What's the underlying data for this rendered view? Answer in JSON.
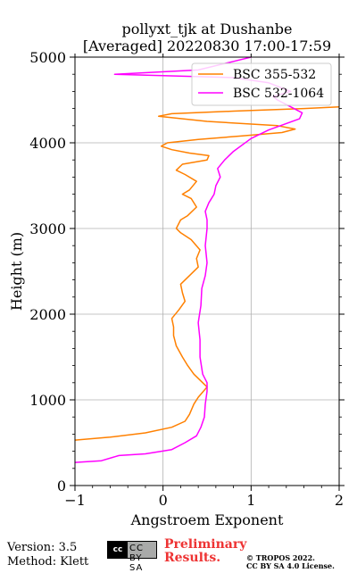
{
  "title": {
    "line1": "pollyxt_tjk at Dushanbe",
    "line2": "[Averaged] 20220830 17:00-17:59"
  },
  "footer": {
    "version": "Version: 3.5",
    "method": "Method: Klett",
    "preliminary_line1": "Preliminary",
    "preliminary_line2": "Results.",
    "copyright_line1": "© TROPOS 2022.",
    "copyright_line2": "CC BY SA 4.0 License.",
    "license_badge": "CC BY SA",
    "license_badge_short": "cc"
  },
  "chart_data": {
    "type": "line",
    "xlabel": "Angstroem Exponent",
    "ylabel": "Height (m)",
    "xlim": [
      -1,
      2
    ],
    "ylim": [
      0,
      5000
    ],
    "xticks": [
      -1,
      0,
      1,
      2
    ],
    "yticks": [
      0,
      1000,
      2000,
      3000,
      4000,
      5000
    ],
    "grid": true,
    "legend_position": "top-right",
    "series": [
      {
        "name": "BSC 355-532",
        "color": "#ff8000",
        "points": [
          [
            -1.0,
            530
          ],
          [
            -0.6,
            565
          ],
          [
            -0.2,
            615
          ],
          [
            0.1,
            680
          ],
          [
            0.25,
            750
          ],
          [
            0.3,
            830
          ],
          [
            0.35,
            950
          ],
          [
            0.4,
            1030
          ],
          [
            0.5,
            1150
          ],
          [
            0.45,
            1200
          ],
          [
            0.35,
            1300
          ],
          [
            0.28,
            1400
          ],
          [
            0.22,
            1500
          ],
          [
            0.15,
            1630
          ],
          [
            0.12,
            1750
          ],
          [
            0.12,
            1850
          ],
          [
            0.1,
            1950
          ],
          [
            0.18,
            2050
          ],
          [
            0.25,
            2150
          ],
          [
            0.22,
            2250
          ],
          [
            0.2,
            2350
          ],
          [
            0.3,
            2450
          ],
          [
            0.4,
            2550
          ],
          [
            0.38,
            2650
          ],
          [
            0.42,
            2750
          ],
          [
            0.32,
            2870
          ],
          [
            0.2,
            2950
          ],
          [
            0.15,
            3000
          ],
          [
            0.2,
            3100
          ],
          [
            0.28,
            3150
          ],
          [
            0.38,
            3250
          ],
          [
            0.32,
            3350
          ],
          [
            0.22,
            3400
          ],
          [
            0.3,
            3450
          ],
          [
            0.38,
            3550
          ],
          [
            0.25,
            3630
          ],
          [
            0.15,
            3680
          ],
          [
            0.22,
            3750
          ],
          [
            0.5,
            3800
          ],
          [
            0.52,
            3850
          ],
          [
            0.3,
            3880
          ],
          [
            0.1,
            3920
          ],
          [
            -0.02,
            3960
          ],
          [
            0.05,
            4000
          ],
          [
            0.4,
            4040
          ],
          [
            0.9,
            4080
          ],
          [
            1.35,
            4120
          ],
          [
            1.5,
            4160
          ],
          [
            1.3,
            4200
          ],
          [
            0.5,
            4250
          ],
          [
            -0.05,
            4310
          ],
          [
            0.1,
            4340
          ],
          [
            0.8,
            4370
          ],
          [
            1.6,
            4400
          ],
          [
            2.0,
            4420
          ]
        ]
      },
      {
        "name": "BSC 532-1064",
        "color": "#ff00ff",
        "points": [
          [
            -1.0,
            270
          ],
          [
            -0.7,
            290
          ],
          [
            -0.5,
            350
          ],
          [
            -0.2,
            370
          ],
          [
            0.1,
            420
          ],
          [
            0.25,
            500
          ],
          [
            0.38,
            580
          ],
          [
            0.43,
            680
          ],
          [
            0.47,
            800
          ],
          [
            0.48,
            950
          ],
          [
            0.5,
            1100
          ],
          [
            0.5,
            1200
          ],
          [
            0.45,
            1300
          ],
          [
            0.42,
            1500
          ],
          [
            0.42,
            1700
          ],
          [
            0.4,
            1900
          ],
          [
            0.43,
            2100
          ],
          [
            0.44,
            2300
          ],
          [
            0.48,
            2450
          ],
          [
            0.5,
            2600
          ],
          [
            0.48,
            2800
          ],
          [
            0.5,
            3000
          ],
          [
            0.5,
            3100
          ],
          [
            0.48,
            3200
          ],
          [
            0.52,
            3300
          ],
          [
            0.58,
            3400
          ],
          [
            0.6,
            3500
          ],
          [
            0.65,
            3600
          ],
          [
            0.62,
            3700
          ],
          [
            0.7,
            3800
          ],
          [
            0.8,
            3900
          ],
          [
            1.0,
            4050
          ],
          [
            1.2,
            4150
          ],
          [
            1.55,
            4280
          ],
          [
            1.58,
            4350
          ],
          [
            1.45,
            4420
          ],
          [
            1.3,
            4500
          ],
          [
            1.25,
            4540
          ],
          [
            1.45,
            4600
          ],
          [
            1.2,
            4700
          ],
          [
            0.8,
            4760
          ],
          [
            -0.55,
            4800
          ],
          [
            0.4,
            4850
          ],
          [
            0.8,
            4950
          ],
          [
            1.0,
            5000
          ]
        ]
      }
    ]
  }
}
